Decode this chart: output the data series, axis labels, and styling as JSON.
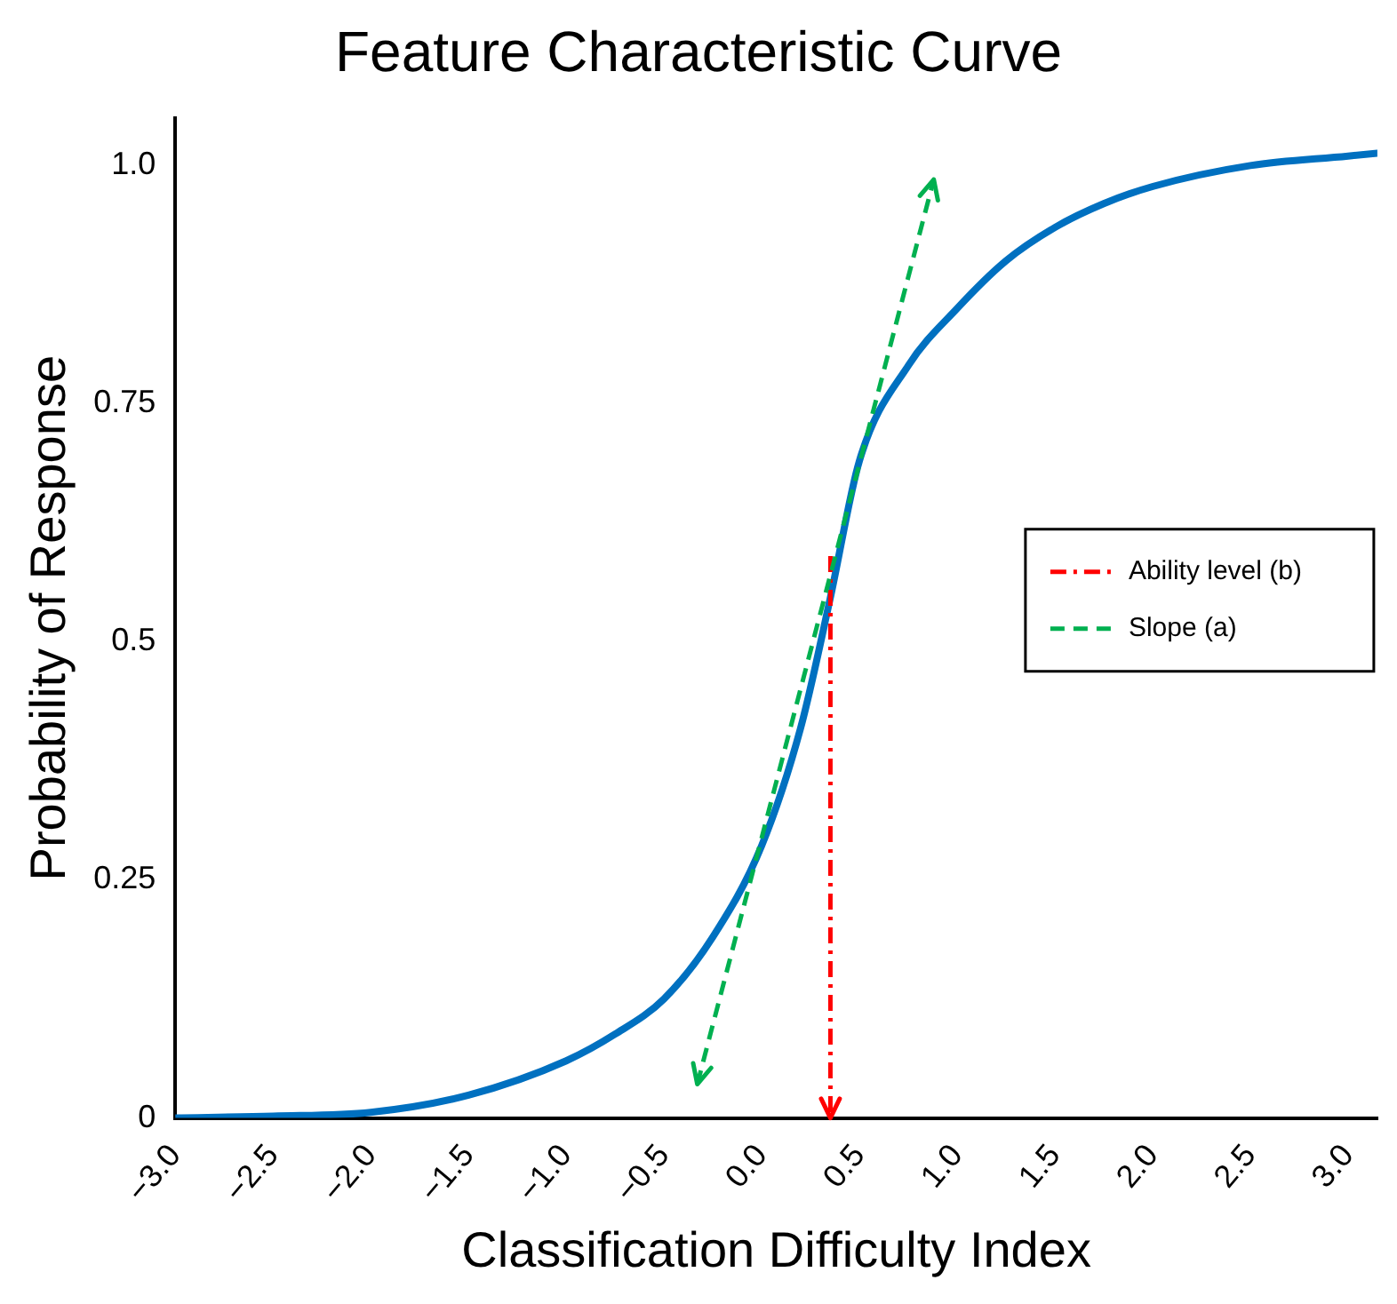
{
  "chart_data": {
    "type": "line",
    "title": "Feature Characteristic Curve",
    "xlabel": "Classification Difficulty Index",
    "ylabel": "Probability of Response",
    "xlim": [
      -3,
      3.15
    ],
    "ylim": [
      0,
      1.05
    ],
    "xticks": [
      {
        "value": -3,
        "label": "−3.0"
      },
      {
        "value": -2.5,
        "label": "−2.5"
      },
      {
        "value": -2,
        "label": "−2.0"
      },
      {
        "value": -1.5,
        "label": "−1.5"
      },
      {
        "value": -1,
        "label": "−1.0"
      },
      {
        "value": -0.5,
        "label": "−0.5"
      },
      {
        "value": 0,
        "label": "0.0"
      },
      {
        "value": 0.5,
        "label": "0.5"
      },
      {
        "value": 1,
        "label": "1.0"
      },
      {
        "value": 1.5,
        "label": "1.5"
      },
      {
        "value": 2,
        "label": "2.0"
      },
      {
        "value": 2.5,
        "label": "2.5"
      },
      {
        "value": 3,
        "label": "3.0"
      }
    ],
    "yticks": [
      0,
      0.25,
      0.5,
      0.75,
      {
        "value": 1,
        "label": "1.0"
      }
    ],
    "grid": false,
    "legend": "right",
    "marker": "none",
    "series": [
      {
        "color": "#0070c0",
        "line_style": "solid",
        "x": [
          -3,
          -2.5,
          -2,
          -1.5,
          -1,
          -0.75,
          -0.5,
          -0.25,
          0,
          0.2,
          0.35,
          0.5,
          0.75,
          1,
          1.25,
          1.5,
          1.75,
          2,
          2.5,
          3,
          3.15
        ],
        "values": [
          0,
          0.002,
          0.006,
          0.024,
          0.06,
          0.088,
          0.125,
          0.19,
          0.286,
          0.41,
          0.545,
          0.69,
          0.79,
          0.85,
          0.9,
          0.935,
          0.96,
          0.978,
          1,
          1.01,
          1.013
        ]
      },
      {
        "type": "line",
        "name": "Ability level (b)",
        "color": "#ff0000",
        "line_style": "dashdot",
        "x": [
          0.35,
          0.35
        ],
        "values": [
          0.59,
          0
        ]
      },
      {
        "type": "line",
        "name": "Slope (a)",
        "color": "#00b050",
        "line_style": "dashed",
        "x": [
          -0.33,
          0.88
        ],
        "values": [
          0.035,
          0.985
        ]
      }
    ]
  }
}
